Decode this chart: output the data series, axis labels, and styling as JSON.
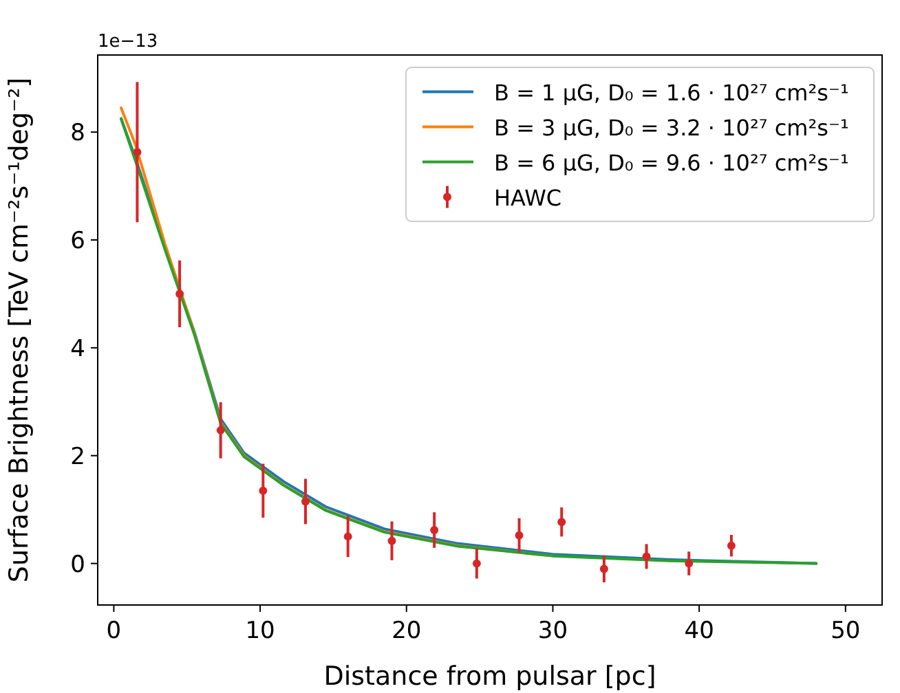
{
  "chart_data": {
    "type": "line",
    "xlabel": "Distance from pulsar [pc]",
    "ylabel": "Surface Brightness [TeV cm⁻²s⁻¹deg⁻²]",
    "annotations": [
      "1e−13"
    ],
    "xlim": [
      -1.1,
      52.5
    ],
    "xticks": [
      0,
      10,
      20,
      30,
      40,
      50
    ],
    "ylim": [
      -0.77,
      9.43
    ],
    "yticks": [
      0,
      2,
      4,
      6,
      8
    ],
    "grid": false,
    "legend": "top right",
    "series": [
      {
        "name": "B = 1 μG, D₀ = 1.6 · 10²⁷ cm²s⁻¹",
        "color": "#1f77b4",
        "marker": "none",
        "x": [
          0.5,
          1.5,
          3.5,
          5.5,
          7.3,
          8.9,
          11.6,
          14.5,
          18.5,
          23.5,
          30,
          38,
          48
        ],
        "values": [
          8.25,
          7.5,
          5.86,
          4.3,
          2.68,
          2.05,
          1.52,
          1.05,
          0.64,
          0.37,
          0.17,
          0.07,
          0.0
        ]
      },
      {
        "name": "B = 3 μG, D₀ = 3.2 · 10²⁷ cm²s⁻¹",
        "color": "#ff7f0e",
        "marker": "none",
        "x": [
          0.5,
          1.5,
          3.5,
          5.5,
          7.3,
          8.9,
          11.6,
          14.5,
          18.5,
          23.5,
          30
        ],
        "values": [
          8.45,
          7.75,
          5.92,
          4.28,
          2.62,
          2.0,
          1.46,
          0.99,
          0.59,
          0.33,
          0.14
        ]
      },
      {
        "name": "B = 6 μG, D₀ = 9.6 · 10²⁷ cm²s⁻¹",
        "color": "#2ca02c",
        "marker": "none",
        "x": [
          0.5,
          1.5,
          3.5,
          5.5,
          7.3,
          8.9,
          11.6,
          14.5,
          18.5,
          23.5,
          30,
          38,
          48
        ],
        "values": [
          8.25,
          7.45,
          5.82,
          4.25,
          2.6,
          1.98,
          1.45,
          0.98,
          0.58,
          0.32,
          0.14,
          0.05,
          0.0
        ]
      },
      {
        "name": "HAWC",
        "color": "#d62728",
        "type": "scatter",
        "marker": "circle",
        "x": [
          1.6,
          4.5,
          7.3,
          10.2,
          13.1,
          16.0,
          19.0,
          21.9,
          24.8,
          27.7,
          30.6,
          33.5,
          36.4,
          39.3,
          42.2
        ],
        "values": [
          7.63,
          5.0,
          2.47,
          1.35,
          1.15,
          0.5,
          0.42,
          0.62,
          0.0,
          0.52,
          0.77,
          -0.1,
          0.13,
          0.0,
          0.33
        ],
        "errors": [
          1.3,
          0.62,
          0.52,
          0.5,
          0.42,
          0.38,
          0.36,
          0.33,
          0.28,
          0.32,
          0.27,
          0.25,
          0.23,
          0.22,
          0.2
        ]
      }
    ]
  }
}
